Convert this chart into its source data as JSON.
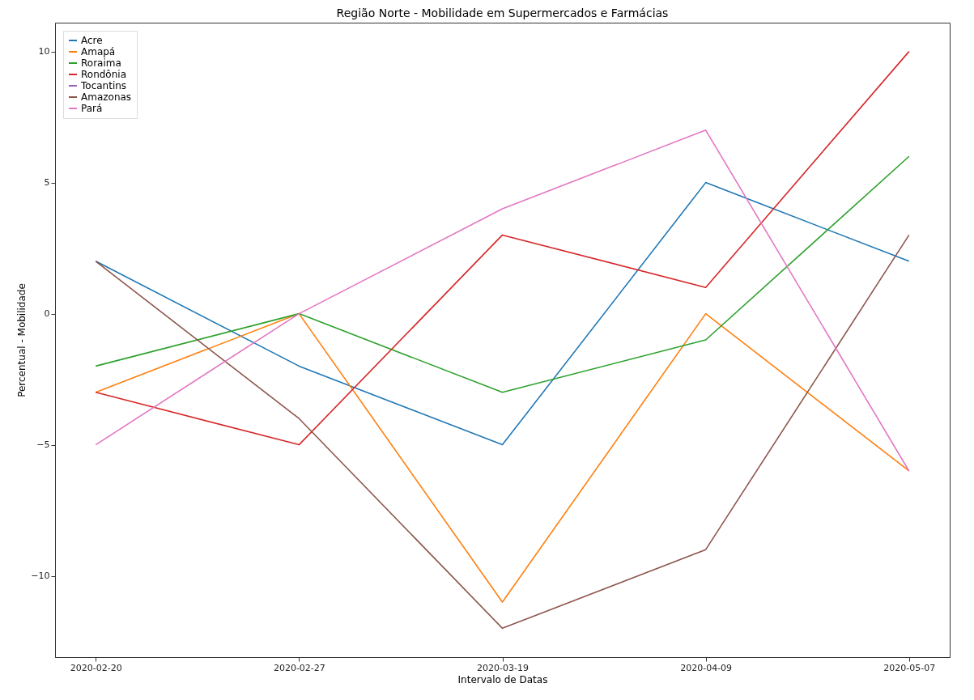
{
  "chart_data": {
    "type": "line",
    "title": "Região Norte - Mobilidade em Supermercados e Farmácias",
    "xlabel": "Intervalo de Datas",
    "ylabel": "Percentual - Mobilidade",
    "categories": [
      "2020-02-20",
      "2020-02-27",
      "2020-03-19",
      "2020-04-09",
      "2020-05-07"
    ],
    "ylim": [
      -13.1,
      11.1
    ],
    "yticks": [
      {
        "value": -10,
        "label": "−10"
      },
      {
        "value": -5,
        "label": "−5"
      },
      0,
      5,
      10
    ],
    "grid": false,
    "legend": "top left",
    "marker": "none",
    "line_style": "solid",
    "series": [
      {
        "name": "Acre",
        "color": "#1f77b4",
        "values": [
          2,
          -2,
          -5,
          5,
          2
        ]
      },
      {
        "name": "Amapá",
        "color": "#ff7f0e",
        "values": [
          -3,
          0,
          -11,
          0,
          -6
        ]
      },
      {
        "name": "Roraima",
        "color": "#2ca02c",
        "values": [
          -2,
          0,
          -3,
          -1,
          6
        ]
      },
      {
        "name": "Rondônia",
        "color": "#d62728",
        "values": [
          -3,
          -5,
          3,
          1,
          10
        ]
      },
      {
        "name": "Tocantins",
        "color": "#9467bd",
        "values": [
          null,
          null,
          null,
          null,
          null
        ]
      },
      {
        "name": "Amazonas",
        "color": "#8c564b",
        "values": [
          2,
          -4,
          -12,
          -9,
          3
        ]
      },
      {
        "name": "Pará",
        "color": "#e377c2",
        "values": [
          -5,
          0,
          4,
          7,
          -6
        ]
      }
    ]
  }
}
